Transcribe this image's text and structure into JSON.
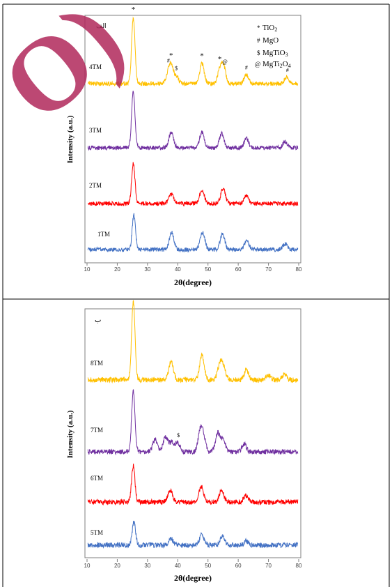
{
  "colors": {
    "TM1": "#4472c4",
    "TM2": "#ff0000",
    "TM3": "#7030a0",
    "TM4": "#ffc000",
    "TM5": "#4472c4",
    "TM6": "#ff0000",
    "TM7": "#7030a0",
    "TM8": "#ffc000",
    "watermark": "#b0285a"
  },
  "watermark_text": "O)",
  "legend": {
    "items": [
      {
        "symbol": "*",
        "label": "TiO",
        "sub": "2",
        "label2": "",
        "sub2": ""
      },
      {
        "symbol": "#",
        "label": "MgO",
        "sub": "",
        "label2": "",
        "sub2": ""
      },
      {
        "symbol": "$",
        "label": "MgTiO",
        "sub": "3",
        "label2": "",
        "sub2": ""
      },
      {
        "symbol": "@",
        "label": "MgTi",
        "sub": "2",
        "label2": "O",
        "sub2": "4"
      }
    ]
  },
  "chart_data": [
    {
      "type": "line",
      "panel_label": "الف",
      "xlabel": "2θ(degree)",
      "ylabel": "Intensity (a.u.)",
      "xlim": [
        10,
        80
      ],
      "xticks": [
        "10",
        "20",
        "30",
        "40",
        "50",
        "60",
        "70",
        "80"
      ],
      "series": [
        {
          "name": "4TM",
          "peaks": [
            [
              25.3,
              10
            ],
            [
              36.9,
              1.2
            ],
            [
              37.8,
              2.4
            ],
            [
              39.5,
              1.0
            ],
            [
              48.0,
              3.0
            ],
            [
              53.9,
              1.8
            ],
            [
              55.1,
              2.6
            ],
            [
              62.7,
              1.3
            ],
            [
              76.0,
              1.0
            ]
          ]
        },
        {
          "name": "3TM",
          "peaks": [
            [
              25.3,
              8.5
            ],
            [
              37.8,
              2.3
            ],
            [
              48.0,
              2.4
            ],
            [
              54.5,
              2.1
            ],
            [
              62.7,
              1.4
            ],
            [
              75.5,
              0.9
            ]
          ]
        },
        {
          "name": "2TM",
          "peaks": [
            [
              25.3,
              6.0
            ],
            [
              37.8,
              1.5
            ],
            [
              48.0,
              2.1
            ],
            [
              55.0,
              2.3
            ],
            [
              62.7,
              1.2
            ]
          ]
        },
        {
          "name": "1TM",
          "peaks": [
            [
              25.5,
              5.3
            ],
            [
              38.0,
              2.6
            ],
            [
              48.2,
              2.6
            ],
            [
              54.8,
              2.3
            ],
            [
              62.8,
              1.3
            ],
            [
              75.5,
              0.9
            ]
          ]
        }
      ],
      "annotations": [
        {
          "text": "*",
          "x": 25.3,
          "series": "4TM"
        },
        {
          "text": "#",
          "x": 36.9,
          "series": "4TM"
        },
        {
          "text": "*",
          "x": 37.8,
          "series": "4TM"
        },
        {
          "text": "$",
          "x": 39.5,
          "series": "4TM"
        },
        {
          "text": "*",
          "x": 48.0,
          "series": "4TM"
        },
        {
          "text": "*",
          "x": 53.9,
          "series": "4TM"
        },
        {
          "text": "@",
          "x": 55.6,
          "series": "4TM"
        },
        {
          "text": "#",
          "x": 62.7,
          "series": "4TM"
        },
        {
          "text": "#",
          "x": 76.3,
          "series": "4TM"
        }
      ]
    },
    {
      "type": "line",
      "panel_label": "ب",
      "xlabel": "2θ(degree)",
      "ylabel": "Intensity (a.u.)",
      "xlim": [
        10,
        80
      ],
      "xticks": [
        "10",
        "20",
        "30",
        "40",
        "50",
        "60",
        "70",
        "80"
      ],
      "series": [
        {
          "name": "8TM",
          "peaks": [
            [
              25.3,
              13
            ],
            [
              37.8,
              3.0
            ],
            [
              48.0,
              4.0
            ],
            [
              53.9,
              2.4
            ],
            [
              55.1,
              2.0
            ],
            [
              62.7,
              1.6
            ],
            [
              70.0,
              0.8
            ],
            [
              75.3,
              0.9
            ]
          ]
        },
        {
          "name": "7TM",
          "peaks": [
            [
              25.3,
              10
            ],
            [
              32.5,
              2.0
            ],
            [
              36.0,
              2.5
            ],
            [
              38.0,
              1.5
            ],
            [
              40.0,
              1.5
            ],
            [
              47.5,
              3.3
            ],
            [
              48.5,
              2.0
            ],
            [
              53.2,
              3.0
            ],
            [
              55.0,
              2.0
            ],
            [
              62.0,
              1.2
            ]
          ]
        },
        {
          "name": "6TM",
          "peaks": [
            [
              25.3,
              6.0
            ],
            [
              37.5,
              2.0
            ],
            [
              47.8,
              2.5
            ],
            [
              54.5,
              2.0
            ],
            [
              62.5,
              1.0
            ]
          ]
        },
        {
          "name": "5TM",
          "peaks": [
            [
              25.5,
              3.8
            ],
            [
              37.8,
              1.0
            ],
            [
              48.0,
              1.8
            ],
            [
              54.8,
              1.4
            ],
            [
              62.7,
              0.7
            ]
          ]
        }
      ],
      "annotations": [
        {
          "text": "$",
          "x": 40.2,
          "series": "7TM"
        }
      ]
    }
  ]
}
